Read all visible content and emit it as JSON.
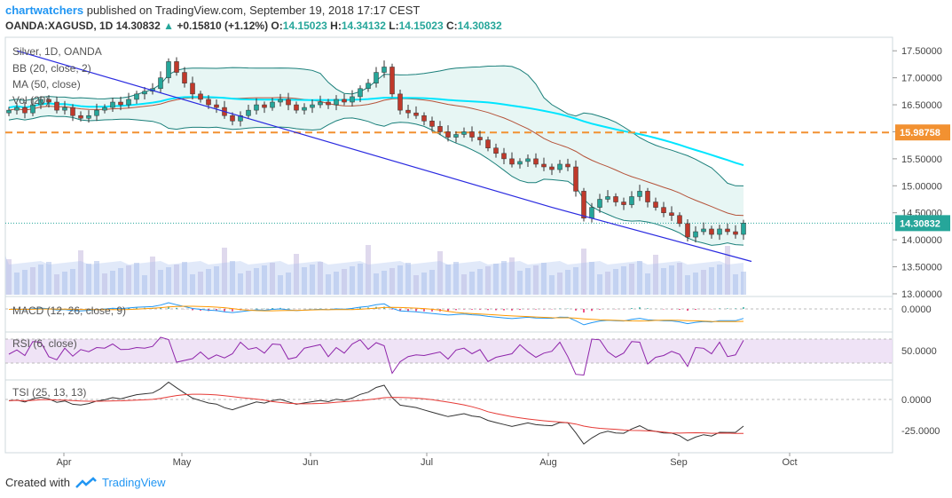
{
  "header": {
    "author": "chartwatchers",
    "published_text": "published on TradingView.com, September 19, 2018 17:17 CEST",
    "symbol": "OANDA:XAGUSD, 1D",
    "last": "14.30832",
    "change_arrow": "▲",
    "change": "+0.15810 (+1.12%)",
    "o_label": "O:",
    "o": "14.15023",
    "h_label": "H:",
    "h": "14.34132",
    "l_label": "L:",
    "l": "14.15023",
    "c_label": "C:",
    "c": "14.30832"
  },
  "legend": {
    "title": "Silver, 1D, OANDA",
    "bb": "BB (20, close, 2)",
    "ma": "MA (50, close)",
    "vol": "Vol (20)",
    "macd": "MACD (12, 26, close, 9)",
    "rsi": "RSI (6, close)",
    "tsi": "TSI (25, 13, 13)"
  },
  "footer": {
    "created_with": "Created with",
    "brand": "TradingView"
  },
  "colors": {
    "accent": "#2196f3",
    "up": "#26a69a",
    "down": "#c0392b",
    "ma": "#00e5ff",
    "bb": "#1a7f7a",
    "trend": "#2a2ae0",
    "dashed": "#f29131"
  },
  "chart_data": {
    "type": "candlestick",
    "x_ticks": [
      "Apr",
      "May",
      "Jun",
      "Jul",
      "Aug",
      "Sep",
      "Oct"
    ],
    "price_axis": {
      "ticks": [
        "17.50000",
        "17.00000",
        "16.50000",
        "16.00000",
        "15.50000",
        "15.00000",
        "14.50000",
        "14.00000",
        "13.50000",
        "13.00000"
      ],
      "range": [
        12.95,
        17.75
      ]
    },
    "levels": {
      "horizontal": 15.98758,
      "horizontal_label": "15.98758",
      "last": 14.30832,
      "last_label": "14.30832"
    },
    "trendline": [
      [
        1,
        17.5
      ],
      [
        68,
        14.6
      ],
      [
        93,
        13.6
      ]
    ],
    "closes": [
      16.4,
      16.45,
      16.35,
      16.5,
      16.6,
      16.55,
      16.4,
      16.45,
      16.3,
      16.25,
      16.3,
      16.4,
      16.45,
      16.55,
      16.5,
      16.6,
      16.7,
      16.75,
      16.8,
      17.0,
      17.3,
      17.1,
      16.9,
      16.7,
      16.6,
      16.5,
      16.45,
      16.3,
      16.2,
      16.3,
      16.4,
      16.5,
      16.45,
      16.55,
      16.6,
      16.5,
      16.4,
      16.45,
      16.5,
      16.55,
      16.5,
      16.6,
      16.55,
      16.65,
      16.8,
      16.9,
      17.1,
      17.2,
      16.7,
      16.4,
      16.35,
      16.3,
      16.2,
      16.1,
      16.0,
      15.9,
      15.95,
      16.0,
      15.9,
      15.85,
      15.7,
      15.6,
      15.5,
      15.4,
      15.45,
      15.5,
      15.4,
      15.35,
      15.3,
      15.4,
      15.35,
      14.9,
      14.4,
      14.6,
      14.75,
      14.8,
      14.7,
      14.65,
      14.8,
      14.9,
      14.7,
      14.6,
      14.5,
      14.45,
      14.3,
      14.05,
      14.15,
      14.2,
      14.1,
      14.2,
      14.15,
      14.1,
      14.31
    ],
    "macd_axis": {
      "ticks": [
        "0.0000"
      ]
    },
    "rsi_axis": {
      "ticks": [
        "50.0000"
      ]
    },
    "tsi_axis": {
      "ticks": [
        "0.0000",
        "-25.0000"
      ]
    }
  }
}
